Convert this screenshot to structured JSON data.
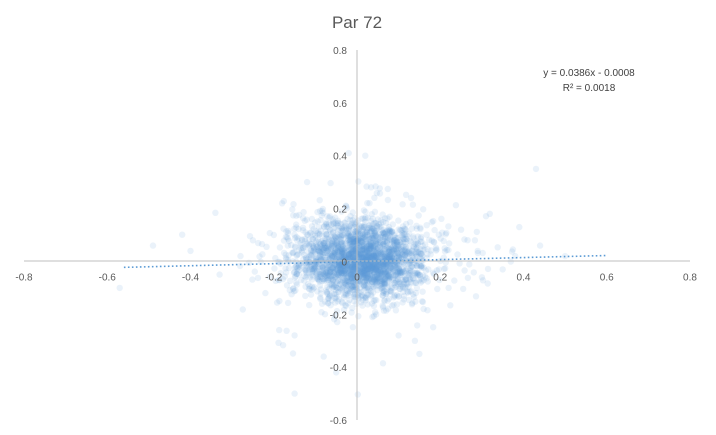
{
  "chart_data": {
    "type": "scatter",
    "title": "Par 72",
    "xlim": [
      -0.8,
      0.8
    ],
    "ylim": [
      -0.6,
      0.8
    ],
    "x_ticks": [
      "-0.8",
      "-0.6",
      "-0.4",
      "-0.2",
      "0",
      "0.2",
      "0.4",
      "0.6",
      "0.8"
    ],
    "y_ticks": [
      "0.8",
      "0.6",
      "0.4",
      "0.2",
      "0",
      "-0.2",
      "-0.4",
      "-0.6"
    ],
    "x_tick_values": [
      -0.8,
      -0.6,
      -0.4,
      -0.2,
      0,
      0.2,
      0.4,
      0.6,
      0.8
    ],
    "y_tick_values": [
      0.8,
      0.6,
      0.4,
      0.2,
      0,
      -0.2,
      -0.4,
      -0.6
    ],
    "grid": false,
    "legend": "none",
    "marker_color": "#5B9BD5",
    "trendline": {
      "type": "linear",
      "slope": 0.0386,
      "intercept": -0.0008,
      "x_range": [
        -0.56,
        0.6
      ],
      "color": "#5B9BD5",
      "style": "dotted"
    },
    "equation_label": "y = 0.0386x - 0.0008",
    "r2_label": "R² = 0.0018",
    "cluster": {
      "center": [
        0.01,
        0.005
      ],
      "sd_x": 0.075,
      "sd_y": 0.07,
      "n_points": 2600
    },
    "outliers": [
      [
        -0.49,
        0.06
      ],
      [
        -0.4,
        0.04
      ],
      [
        -0.57,
        -0.1
      ],
      [
        -0.33,
        -0.05
      ],
      [
        -0.28,
        0.02
      ],
      [
        -0.2,
        0.1
      ],
      [
        -0.18,
        0.22
      ],
      [
        -0.12,
        0.3
      ],
      [
        -0.15,
        -0.28
      ],
      [
        -0.08,
        -0.36
      ],
      [
        -0.05,
        -0.42
      ],
      [
        -0.15,
        -0.5
      ],
      [
        -0.02,
        0.41
      ],
      [
        0.02,
        0.4
      ],
      [
        0.13,
        0.24
      ],
      [
        0.25,
        0.12
      ],
      [
        0.29,
        0.04
      ],
      [
        0.3,
        -0.06
      ],
      [
        0.35,
        -0.03
      ],
      [
        0.38,
        0.02
      ],
      [
        0.39,
        0.13
      ],
      [
        0.43,
        0.35
      ],
      [
        0.44,
        0.06
      ],
      [
        0.5,
        0.02
      ],
      [
        0.16,
        -0.18
      ],
      [
        0.15,
        -0.35
      ],
      [
        0.22,
        -0.1
      ],
      [
        0.1,
        -0.28
      ],
      [
        -0.22,
        -0.12
      ],
      [
        -0.25,
        0.08
      ]
    ]
  }
}
